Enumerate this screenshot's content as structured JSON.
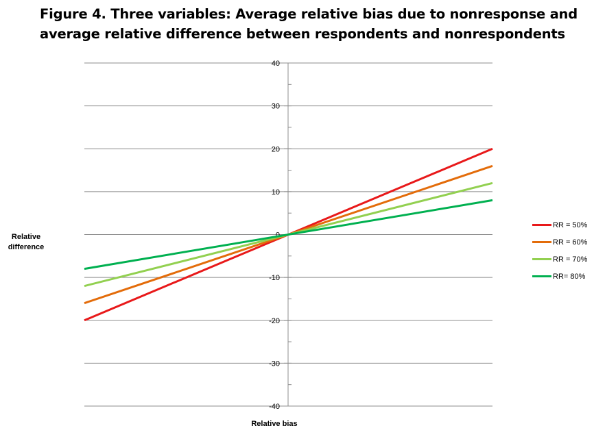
{
  "chart_data": {
    "type": "line",
    "title_lines": [
      "Figure 4. Three variables:  Average relative bias due to nonresponse and",
      "average relative difference between respondents and nonrespondents"
    ],
    "xlabel": "Relative bias",
    "ylabel": "Relative difference",
    "ylim": [
      -40,
      40
    ],
    "xlim": [
      -1,
      1
    ],
    "y_ticks": [
      "40",
      "30",
      "20",
      "10",
      "0",
      "-10",
      "-20",
      "-30",
      "-40"
    ],
    "grid": "horizontal",
    "legend_position": "right",
    "series": [
      {
        "name": "RR = 50%",
        "color": "#e8191a",
        "x": [
          -1,
          1
        ],
        "y": [
          -20,
          20
        ]
      },
      {
        "name": "RR = 60%",
        "color": "#e36c0a",
        "x": [
          -1,
          1
        ],
        "y": [
          -16,
          16
        ]
      },
      {
        "name": "RR = 70%",
        "color": "#92d050",
        "x": [
          -1,
          1
        ],
        "y": [
          -12,
          12
        ]
      },
      {
        "name": "RR= 80%",
        "color": "#00b050",
        "x": [
          -1,
          1
        ],
        "y": [
          -8,
          8
        ]
      }
    ]
  }
}
